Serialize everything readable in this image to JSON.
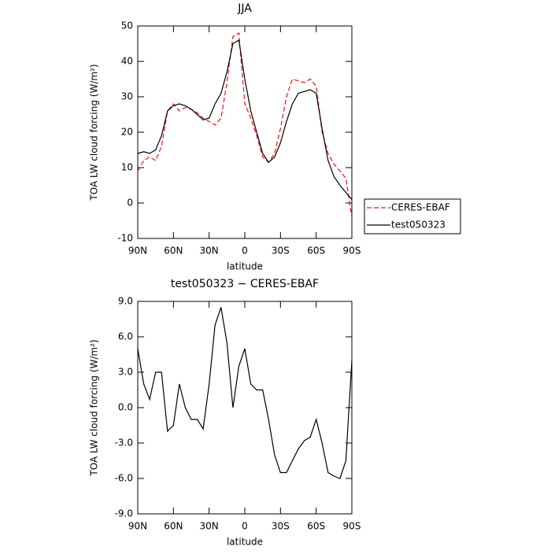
{
  "chart_data": [
    {
      "type": "line",
      "title": "JJA",
      "xlabel": "latitude",
      "ylabel": "TOA LW cloud forcing (W/m²)",
      "x": [
        90,
        85,
        80,
        75,
        70,
        65,
        60,
        55,
        50,
        45,
        40,
        35,
        30,
        25,
        20,
        15,
        10,
        5,
        0,
        -5,
        -10,
        -15,
        -20,
        -25,
        -30,
        -35,
        -40,
        -45,
        -50,
        -55,
        -60,
        -65,
        -70,
        -75,
        -80,
        -85,
        -90
      ],
      "xlim": [
        90,
        -90
      ],
      "xticks": [
        {
          "value": 90,
          "label": "90N"
        },
        {
          "value": 60,
          "label": "60N"
        },
        {
          "value": 30,
          "label": "30N"
        },
        0,
        {
          "value": -30,
          "label": "30S"
        },
        {
          "value": -60,
          "label": "60S"
        },
        {
          "value": -90,
          "label": "90S"
        }
      ],
      "ylim": [
        -10,
        50
      ],
      "yticks": [
        -10,
        0,
        10,
        20,
        30,
        40,
        50
      ],
      "legend": "outside-right",
      "series": [
        {
          "name": "CERES-EBAF",
          "color": "#e31a1c",
          "style": "dashed",
          "values": [
            9,
            12,
            13,
            12,
            16,
            26,
            28,
            26,
            27,
            26.5,
            25.5,
            24,
            23,
            22,
            24,
            34,
            47,
            48,
            28,
            24,
            19,
            13,
            11.5,
            14,
            21,
            30,
            35,
            34.5,
            34,
            35,
            33,
            20,
            14,
            11,
            9,
            7,
            -4
          ]
        },
        {
          "name": "test050323",
          "color": "#000000",
          "style": "solid",
          "values": [
            14,
            14.5,
            14,
            15,
            19,
            26,
            27.5,
            28,
            27.5,
            26.5,
            25,
            23.5,
            24,
            28,
            31,
            37,
            45,
            46,
            35,
            26,
            20,
            14,
            11.5,
            13,
            17,
            23,
            28,
            31,
            31.5,
            32,
            31,
            21,
            12,
            7.5,
            5,
            3,
            1
          ]
        }
      ]
    },
    {
      "type": "line",
      "title": "test050323 − CERES-EBAF",
      "xlabel": "latitude",
      "ylabel": "TOA LW cloud forcing (W/m²)",
      "x": [
        90,
        85,
        80,
        75,
        70,
        65,
        60,
        55,
        50,
        45,
        40,
        35,
        30,
        25,
        20,
        15,
        10,
        5,
        0,
        -5,
        -10,
        -15,
        -20,
        -25,
        -30,
        -35,
        -40,
        -45,
        -50,
        -55,
        -60,
        -65,
        -70,
        -75,
        -80,
        -85,
        -90
      ],
      "xlim": [
        90,
        -90
      ],
      "xticks": [
        {
          "value": 90,
          "label": "90N"
        },
        {
          "value": 60,
          "label": "60N"
        },
        {
          "value": 30,
          "label": "30N"
        },
        0,
        {
          "value": -30,
          "label": "30S"
        },
        {
          "value": -60,
          "label": "60S"
        },
        {
          "value": -90,
          "label": "90S"
        }
      ],
      "ylim": [
        -9,
        9
      ],
      "yticks": [
        {
          "value": -9,
          "label": "-9.0"
        },
        {
          "value": -6,
          "label": "-6.0"
        },
        {
          "value": -3,
          "label": "-3.0"
        },
        {
          "value": 0,
          "label": "0.0"
        },
        {
          "value": 3,
          "label": "3.0"
        },
        {
          "value": 6,
          "label": "6.0"
        },
        {
          "value": 9,
          "label": "9.0"
        }
      ],
      "color": "#000000",
      "values": [
        5,
        2,
        0.7,
        3,
        3,
        -2,
        -1.5,
        2,
        0,
        -1,
        -1,
        -1.8,
        2,
        7,
        8.5,
        5.5,
        0,
        3.5,
        5,
        2,
        1.5,
        1.5,
        -1,
        -4,
        -5.5,
        -5.5,
        -4.5,
        -3.5,
        -2.8,
        -2.5,
        -1,
        -3,
        -5.5,
        -5.8,
        -6,
        -4.5,
        4
      ]
    }
  ]
}
